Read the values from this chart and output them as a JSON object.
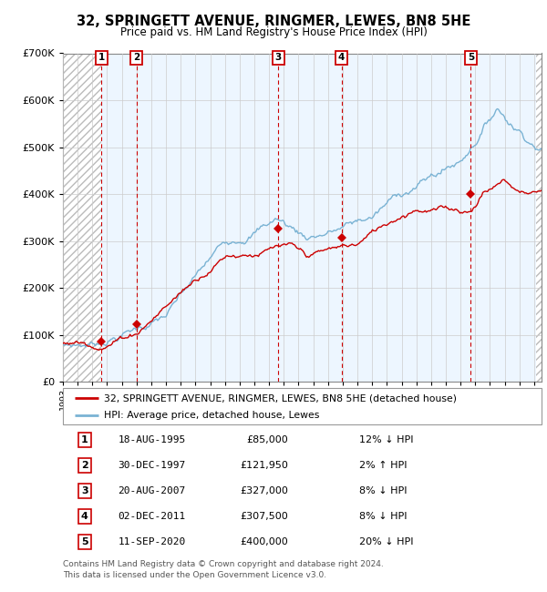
{
  "title": "32, SPRINGETT AVENUE, RINGMER, LEWES, BN8 5HE",
  "subtitle": "Price paid vs. HM Land Registry's House Price Index (HPI)",
  "transactions": [
    {
      "num": 1,
      "date": "18-AUG-1995",
      "price": 85000,
      "pct": "12%",
      "dir": "↓",
      "year": 1995.63
    },
    {
      "num": 2,
      "date": "30-DEC-1997",
      "price": 121950,
      "pct": "2%",
      "dir": "↑",
      "year": 1997.99
    },
    {
      "num": 3,
      "date": "20-AUG-2007",
      "price": 327000,
      "pct": "8%",
      "dir": "↓",
      "year": 2007.63
    },
    {
      "num": 4,
      "date": "02-DEC-2011",
      "price": 307500,
      "pct": "8%",
      "dir": "↓",
      "year": 2011.92
    },
    {
      "num": 5,
      "date": "11-SEP-2020",
      "price": 400000,
      "pct": "20%",
      "dir": "↓",
      "year": 2020.7
    }
  ],
  "hpi_color": "#7ab3d4",
  "price_color": "#cc0000",
  "dot_color": "#cc0000",
  "bg_stripe_color": "#ddeeff",
  "grid_color": "#cccccc",
  "dashed_line_color": "#cc0000",
  "ylim": [
    0,
    700000
  ],
  "yticks": [
    0,
    100000,
    200000,
    300000,
    400000,
    500000,
    600000,
    700000
  ],
  "ylabel_fmt": [
    "£0",
    "£100K",
    "£200K",
    "£300K",
    "£400K",
    "£500K",
    "£600K",
    "£700K"
  ],
  "xmin": 1993.0,
  "xmax": 2025.5,
  "footer": "Contains HM Land Registry data © Crown copyright and database right 2024.\nThis data is licensed under the Open Government Licence v3.0.",
  "legend_label1": "32, SPRINGETT AVENUE, RINGMER, LEWES, BN8 5HE (detached house)",
  "legend_label2": "HPI: Average price, detached house, Lewes"
}
